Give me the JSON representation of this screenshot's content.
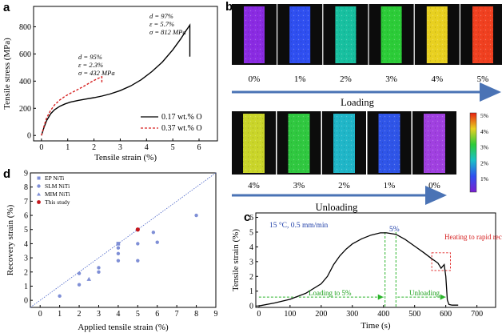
{
  "panels": {
    "a": "a",
    "b": "b",
    "c": "c",
    "d": "d"
  },
  "colors": {
    "solid_line": "#000000",
    "dashed_line": "#d62020",
    "arrow_blue": "#4a73b5",
    "scatter_blue": "#7f8fd6",
    "this_study_red": "#c4161c",
    "green_dash": "#2bb52b",
    "red_box": "#e02020"
  },
  "chart_data": [
    {
      "panel": "a",
      "type": "line",
      "xlabel": "Tensile strain (%)",
      "ylabel": "Tensile stress (MPa)",
      "xlim": [
        -0.3,
        6.7
      ],
      "ylim": [
        -40,
        950
      ],
      "xticks": [
        0,
        1,
        2,
        3,
        4,
        5,
        6
      ],
      "yticks": [
        0,
        200,
        400,
        600,
        800
      ],
      "grid": false,
      "legend_position": "bottom-right",
      "series": [
        {
          "name": "0.17 wt.% O",
          "style": "solid",
          "color": "#000000",
          "x": [
            0,
            0.1,
            0.2,
            0.35,
            0.5,
            0.7,
            0.9,
            1.1,
            1.4,
            1.7,
            2.0,
            2.3,
            2.6,
            3.0,
            3.4,
            3.8,
            4.2,
            4.6,
            5.0,
            5.3,
            5.5,
            5.65,
            5.65
          ],
          "y": [
            0,
            60,
            110,
            160,
            190,
            215,
            232,
            245,
            258,
            268,
            278,
            290,
            305,
            330,
            365,
            410,
            470,
            540,
            630,
            710,
            770,
            812,
            580
          ]
        },
        {
          "name": "0.37 wt.% O",
          "style": "dashed",
          "color": "#d62020",
          "x": [
            0,
            0.1,
            0.2,
            0.35,
            0.5,
            0.7,
            0.9,
            1.1,
            1.3,
            1.5,
            1.7,
            1.9,
            2.1,
            2.3,
            2.3
          ],
          "y": [
            0,
            70,
            130,
            185,
            225,
            262,
            288,
            310,
            330,
            350,
            372,
            395,
            415,
            432,
            380
          ]
        }
      ],
      "annotations": [
        {
          "lines": [
            "d = 97%",
            "ε = 5.7%",
            "σ = 812 MPa"
          ]
        },
        {
          "lines": [
            "d = 95%",
            "ε = 2.3%",
            "σ = 432 MPa"
          ]
        }
      ]
    },
    {
      "panel": "b",
      "type": "heatmap",
      "loading_label": "Loading",
      "unloading_label": "Unloading",
      "loading_strains": [
        "0%",
        "1%",
        "2%",
        "3%",
        "4%",
        "5%"
      ],
      "loading_colors": [
        "#8a2be2",
        "#2f4ff0",
        "#18c0a0",
        "#2ccc38",
        "#e8d020",
        "#f04020"
      ],
      "unloading_strains": [
        "4%",
        "3%",
        "2%",
        "1%",
        "0%"
      ],
      "unloading_colors": [
        "#cad52a",
        "#30c840",
        "#20b6c8",
        "#2f55e8",
        "#a040e0"
      ],
      "colorbar_ticks": [
        "5%",
        "4%",
        "3%",
        "2%",
        "1%"
      ],
      "colorbar_values": [
        5,
        4,
        3,
        2,
        1
      ]
    },
    {
      "panel": "c",
      "type": "line",
      "xlabel": "Time (s)",
      "ylabel": "Tensile strain (%)",
      "xlim": [
        -10,
        760
      ],
      "ylim": [
        -0.1,
        6.3
      ],
      "xticks": [
        0,
        100,
        200,
        300,
        400,
        500,
        600,
        700
      ],
      "yticks": [
        0,
        1,
        2,
        3,
        4,
        5,
        6
      ],
      "grid": false,
      "condition_label": "15 °C, 0.5 mm/min",
      "peak_label": "5%",
      "loading_label": "Loading to 5%",
      "unloading_label": "Unloading",
      "heating_label": "Heating to rapid recovery",
      "series": [
        {
          "name": "",
          "color": "#000000",
          "x": [
            0,
            50,
            100,
            150,
            200,
            220,
            240,
            260,
            280,
            300,
            330,
            360,
            390,
            410,
            440,
            470,
            500,
            530,
            555,
            565,
            575,
            585,
            595,
            600,
            605,
            610,
            620,
            640
          ],
          "y": [
            0,
            0.2,
            0.45,
            0.85,
            1.5,
            2.0,
            2.8,
            3.4,
            3.85,
            4.2,
            4.55,
            4.8,
            4.95,
            4.95,
            4.85,
            4.5,
            4.05,
            3.6,
            3.2,
            3.05,
            2.9,
            2.55,
            2.8,
            2.0,
            0.4,
            0.1,
            0.05,
            0.05
          ]
        }
      ]
    },
    {
      "panel": "d",
      "type": "scatter",
      "xlabel": "Applied tensile strain (%)",
      "ylabel": "Recovery strain (%)",
      "xlim": [
        -0.5,
        9
      ],
      "ylim": [
        -0.5,
        9
      ],
      "xticks": [
        0,
        1,
        2,
        3,
        4,
        5,
        6,
        7,
        8,
        9
      ],
      "yticks": [
        0,
        1,
        2,
        3,
        4,
        5,
        6,
        7,
        8,
        9
      ],
      "grid": false,
      "legend_position": "top-left",
      "reference_line": [
        [
          -0.5,
          -0.5
        ],
        [
          9,
          9
        ]
      ],
      "series": [
        {
          "name": "EP NiTi",
          "marker": "square",
          "color": "#7f8fd6",
          "x": [
            4
          ],
          "y": [
            4
          ]
        },
        {
          "name": "SLM NiTi",
          "marker": "circle",
          "color": "#7f8fd6",
          "x": [
            1,
            2,
            2,
            3,
            3,
            4,
            4,
            4,
            5,
            5,
            5.8,
            6,
            8
          ],
          "y": [
            0.3,
            1.1,
            1.9,
            2.0,
            2.3,
            2.8,
            3.3,
            3.7,
            2.8,
            4.0,
            4.8,
            4.1,
            6.0
          ]
        },
        {
          "name": "MIM NiTi",
          "marker": "triangle",
          "color": "#7f8fd6",
          "x": [
            2.5
          ],
          "y": [
            1.5
          ]
        },
        {
          "name": "This study",
          "marker": "circle",
          "color": "#c4161c",
          "x": [
            5
          ],
          "y": [
            5
          ]
        }
      ]
    }
  ]
}
